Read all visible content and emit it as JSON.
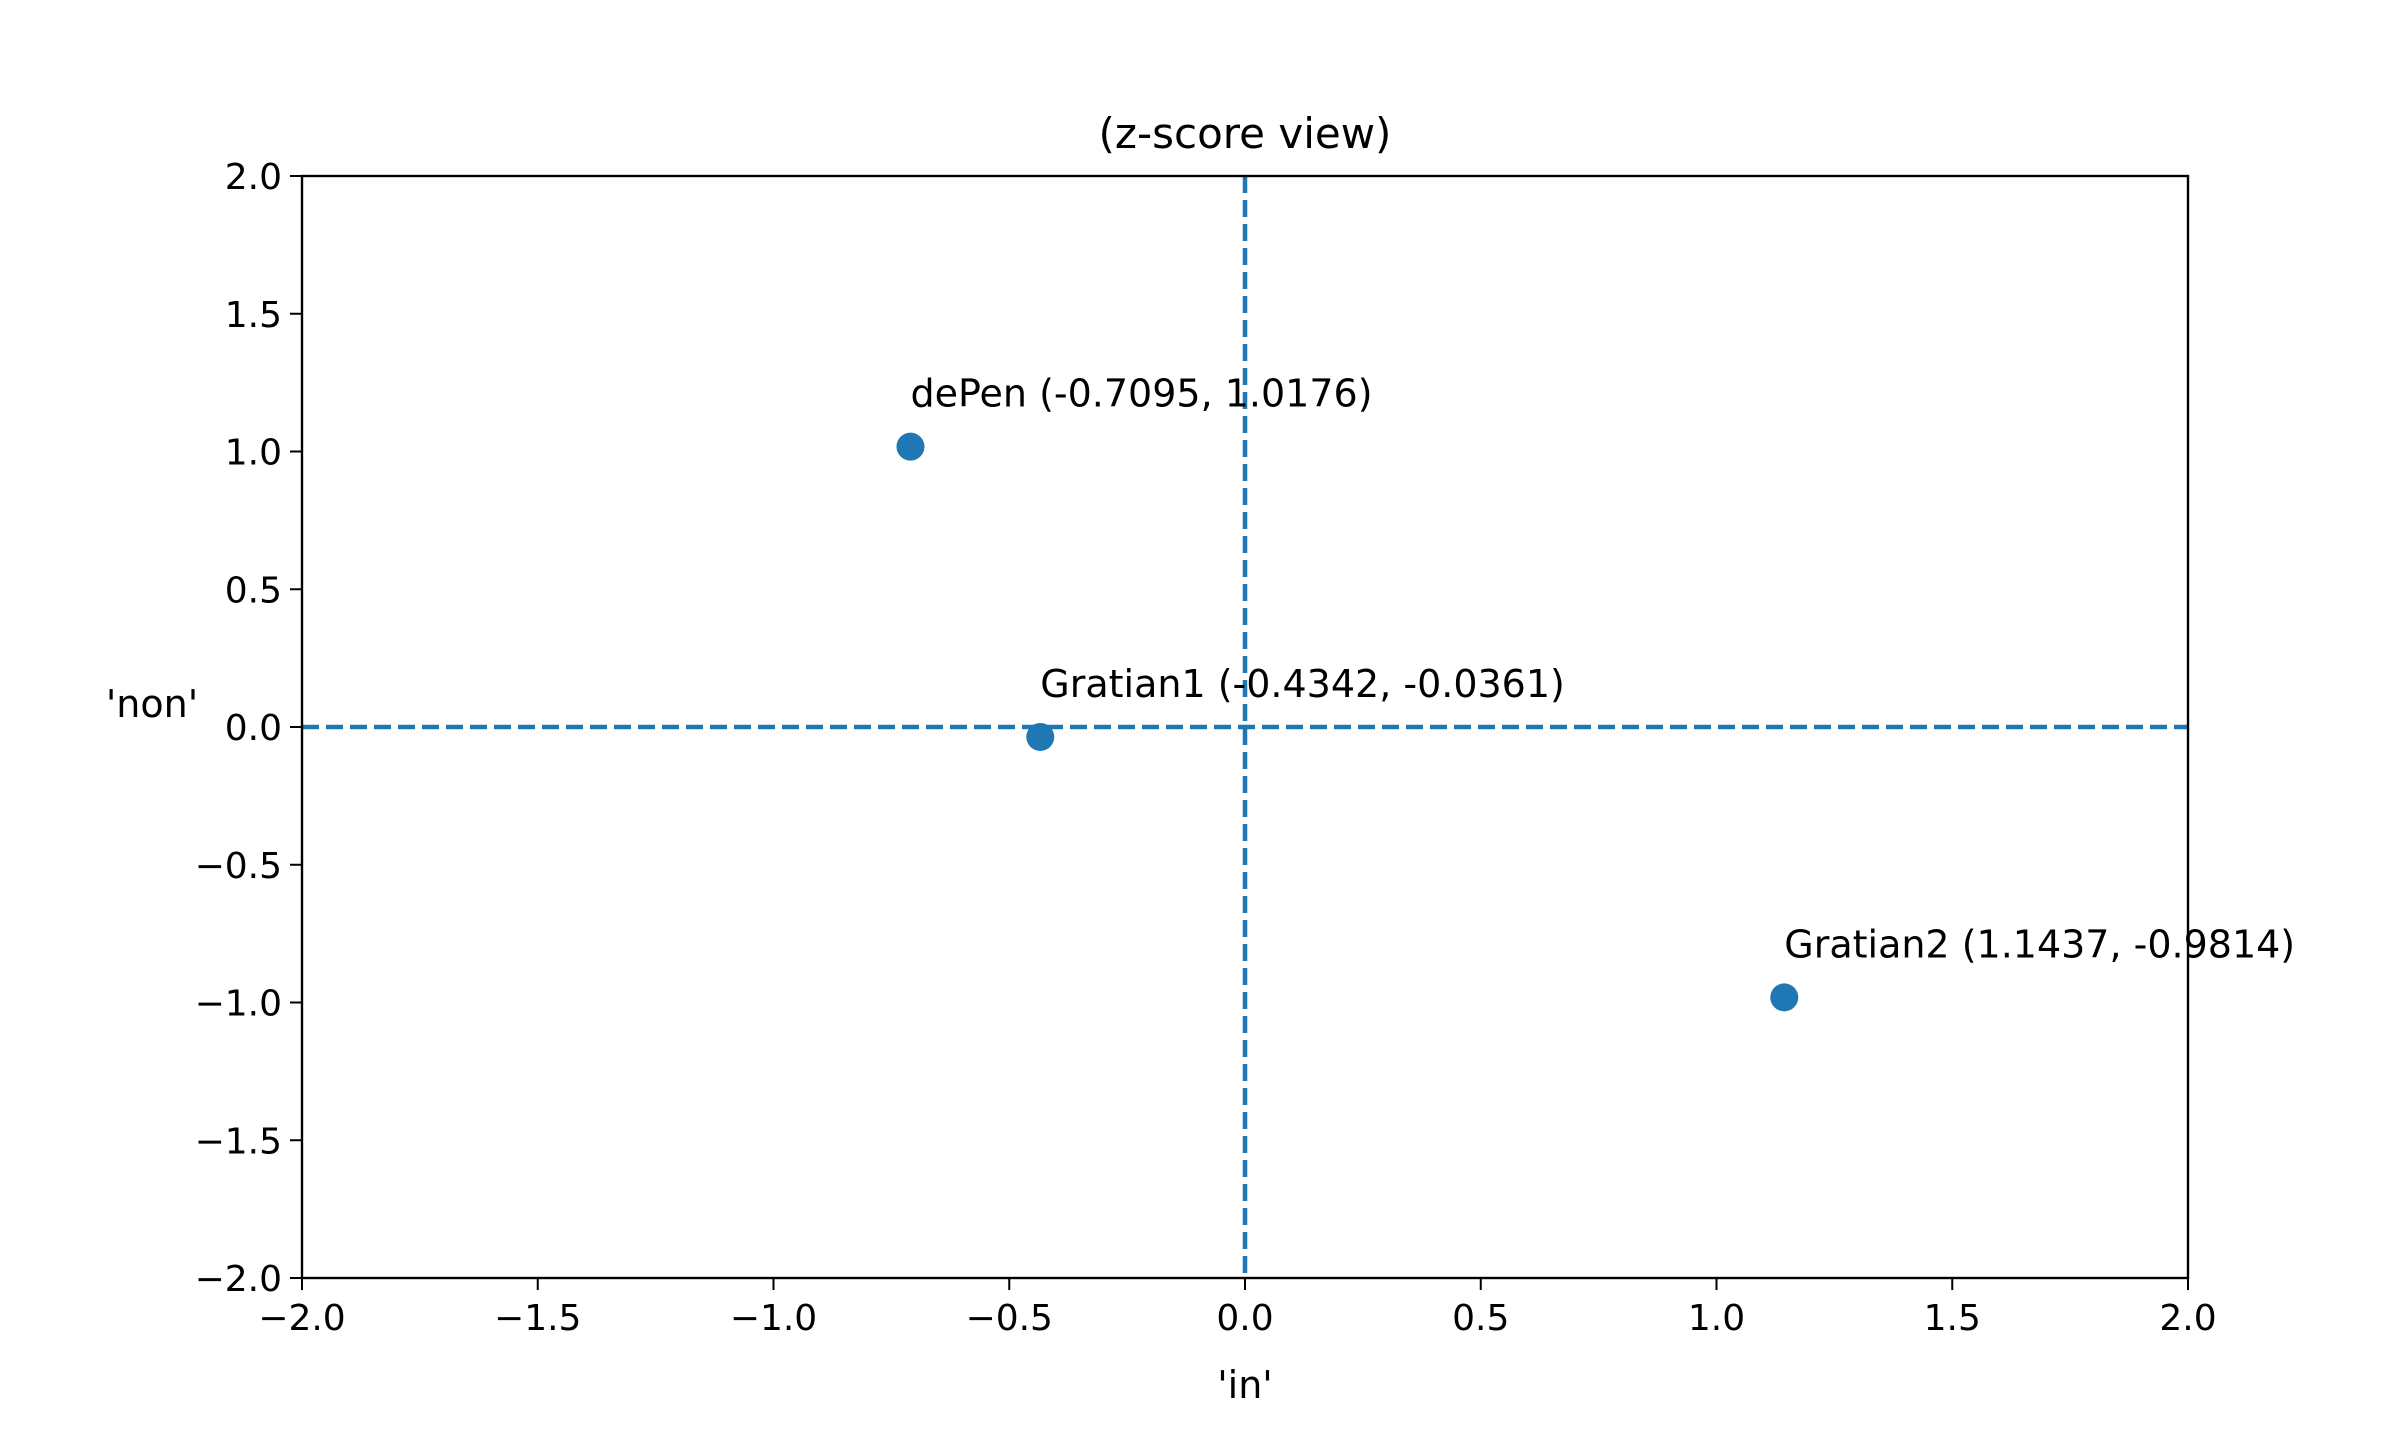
{
  "chart_data": {
    "type": "scatter",
    "title": "(z-score view)",
    "xlabel": "'in'",
    "ylabel": "'non'",
    "xlim": [
      -2.0,
      2.0
    ],
    "ylim": [
      -2.0,
      2.0
    ],
    "xticks": [
      -2.0,
      -1.5,
      -1.0,
      -0.5,
      0.0,
      0.5,
      1.0,
      1.5,
      2.0
    ],
    "yticks": [
      -2.0,
      -1.5,
      -1.0,
      -0.5,
      0.0,
      0.5,
      1.0,
      1.5,
      2.0
    ],
    "xtick_labels": [
      "−2.0",
      "−1.5",
      "−1.0",
      "−0.5",
      "0.0",
      "0.5",
      "1.0",
      "1.5",
      "2.0"
    ],
    "ytick_labels": [
      "−2.0",
      "−1.5",
      "−1.0",
      "−0.5",
      "0.0",
      "0.5",
      "1.0",
      "1.5",
      "2.0"
    ],
    "grid": false,
    "reference_lines": [
      {
        "orientation": "horizontal",
        "value": 0.0,
        "style": "dashed"
      },
      {
        "orientation": "vertical",
        "value": 0.0,
        "style": "dashed"
      }
    ],
    "points": [
      {
        "x": -0.7095,
        "y": 1.0176,
        "label": "dePen (-0.7095, 1.0176)"
      },
      {
        "x": -0.4342,
        "y": -0.0361,
        "label": "Gratian1 (-0.4342, -0.0361)"
      },
      {
        "x": 1.1437,
        "y": -0.9814,
        "label": "Gratian2 (1.1437, -0.9814)"
      }
    ],
    "colors": {
      "marker": "#1f77b4",
      "reference_line": "#1f77b4",
      "axes": "#000000"
    }
  }
}
